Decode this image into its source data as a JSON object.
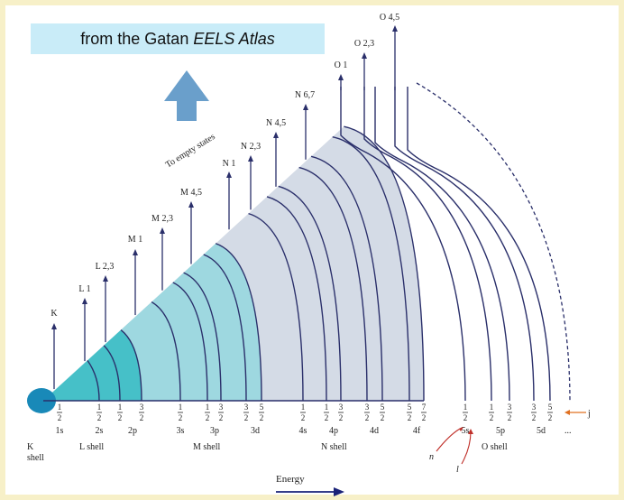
{
  "caption": {
    "prefix": "from the Gatan",
    "italic": "EELS Atlas"
  },
  "empty_states_label": "To empty states",
  "edges": [
    "K",
    "L 1",
    "L 2,3",
    "M 1",
    "M 2,3",
    "M 4,5",
    "N 1",
    "N 2,3",
    "N 4,5",
    "N 6,7",
    "O 1",
    "O 2,3",
    "O 4,5"
  ],
  "j_values": {
    "K": [
      "1/2"
    ],
    "L": [
      "1/2",
      "1/2",
      "3/2"
    ],
    "M": [
      "1/2",
      "1/2",
      "3/2",
      "3/2",
      "5/2"
    ],
    "N": [
      "1/2",
      "1/2",
      "3/2",
      "3/2",
      "5/2",
      "5/2",
      "7/2"
    ],
    "O": [
      "1/2",
      "1/2",
      "3/2",
      "3/2",
      "5/2"
    ]
  },
  "subshells": [
    "1s",
    "2s",
    "2p",
    "3s",
    "3p",
    "3d",
    "4s",
    "4p",
    "4d",
    "4f",
    "5s",
    "5p",
    "5d"
  ],
  "continuation": "...",
  "shells": [
    "K",
    "L shell",
    "M shell",
    "N shell",
    "O shell"
  ],
  "shell_suffix": "shell",
  "symbols": {
    "n": "n",
    "l": "l",
    "j": "j"
  },
  "energy_label": "Energy",
  "colors": {
    "K": "#1989b8",
    "L": "#46c0c8",
    "M": "#9ed8e0",
    "N": "#d4dbe6",
    "line": "#2a2f6a",
    "axis": "#1a2278",
    "arrow_up": "#6a9fcb",
    "j_arrow": "#e07020",
    "nl_arrow": "#c0302a"
  }
}
